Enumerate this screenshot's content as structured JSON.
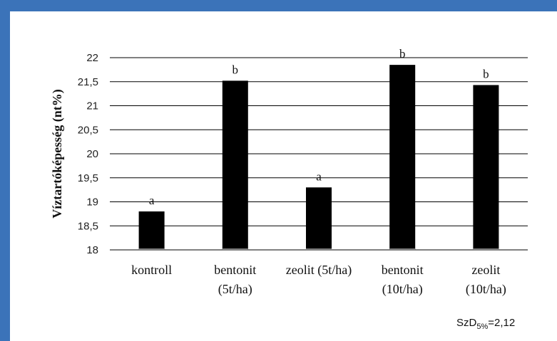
{
  "chart_data": {
    "type": "bar",
    "categories": [
      [
        "kontroll"
      ],
      [
        "bentonit",
        "(5t/ha)"
      ],
      [
        "zeolit (5t/ha)"
      ],
      [
        "bentonit",
        "(10t/ha)"
      ],
      [
        "zeolit",
        "(10t/ha)"
      ]
    ],
    "values": [
      18.8,
      21.52,
      19.3,
      21.85,
      21.43
    ],
    "significance_letters": [
      "a",
      "b",
      "a",
      "b",
      "b"
    ],
    "ylabel": "Víztartóképesség (nt%)",
    "xlabel": "",
    "ylim": [
      18,
      22
    ],
    "yticks": [
      "18",
      "18,5",
      "19",
      "19,5",
      "20",
      "20,5",
      "21",
      "21,5",
      "22"
    ],
    "grid": true,
    "bar_color": "#000000",
    "lsd_note": {
      "prefix": "SzD",
      "subscript": "5%",
      "value": "=2,12"
    }
  },
  "colors": {
    "frame": "#3b73b9",
    "background": "#ffffff",
    "gridline": "#000000"
  }
}
